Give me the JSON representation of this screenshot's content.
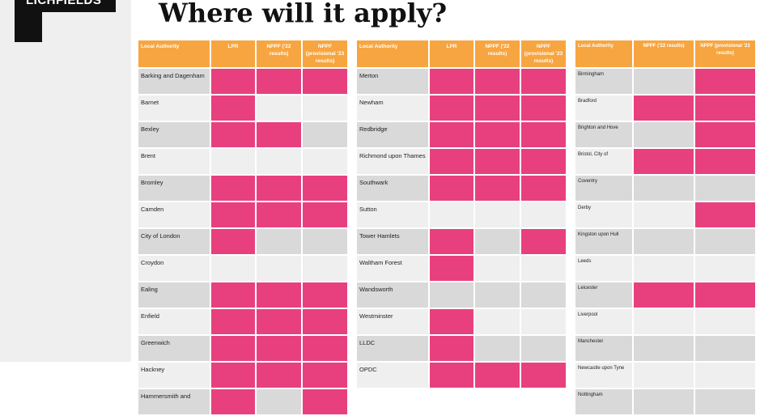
{
  "logo": {
    "text": "LICHFIELDS"
  },
  "title": "Where will it apply?",
  "colors": {
    "header": "#f7a540",
    "highlight": "#e8407f",
    "row_dark": "#d9d9d9",
    "row_light": "#efefef"
  },
  "table1": {
    "headers": [
      "Local Authority",
      "LPR",
      "NPPF ('22 results)",
      "NPPF (provisional '23 results)"
    ],
    "rows": [
      {
        "name": "Barking and Dagenham",
        "cells": [
          true,
          true,
          true
        ]
      },
      {
        "name": "Barnet",
        "cells": [
          true,
          false,
          false
        ]
      },
      {
        "name": "Bexley",
        "cells": [
          true,
          true,
          false
        ]
      },
      {
        "name": "Brent",
        "cells": [
          false,
          false,
          false
        ]
      },
      {
        "name": "Bromley",
        "cells": [
          true,
          true,
          true
        ]
      },
      {
        "name": "Camden",
        "cells": [
          true,
          true,
          true
        ]
      },
      {
        "name": "City of London",
        "cells": [
          true,
          false,
          false
        ]
      },
      {
        "name": "Croydon",
        "cells": [
          false,
          false,
          false
        ]
      },
      {
        "name": "Ealing",
        "cells": [
          true,
          true,
          true
        ]
      },
      {
        "name": "Enfield",
        "cells": [
          true,
          true,
          true
        ]
      },
      {
        "name": "Greenwich",
        "cells": [
          true,
          true,
          true
        ]
      },
      {
        "name": "Hackney",
        "cells": [
          true,
          true,
          true
        ]
      },
      {
        "name": "Hammersmith and",
        "cells": [
          true,
          false,
          true
        ]
      }
    ]
  },
  "table2": {
    "headers": [
      "Local Authority",
      "LPR",
      "NPPF ('22 results)",
      "NPPF (provisional '23 results)"
    ],
    "rows": [
      {
        "name": "Merton",
        "cells": [
          true,
          true,
          true
        ]
      },
      {
        "name": "Newham",
        "cells": [
          true,
          true,
          true
        ]
      },
      {
        "name": "Redbridge",
        "cells": [
          true,
          true,
          true
        ]
      },
      {
        "name": "Richmond upon Thames",
        "cells": [
          true,
          true,
          true
        ]
      },
      {
        "name": "Southwark",
        "cells": [
          true,
          true,
          true
        ]
      },
      {
        "name": "Sutton",
        "cells": [
          false,
          false,
          false
        ]
      },
      {
        "name": "Tower Hamlets",
        "cells": [
          true,
          false,
          true
        ]
      },
      {
        "name": "Waltham Forest",
        "cells": [
          true,
          false,
          false
        ]
      },
      {
        "name": "Wandsworth",
        "cells": [
          false,
          false,
          false
        ]
      },
      {
        "name": "Westminster",
        "cells": [
          true,
          false,
          false
        ]
      },
      {
        "name": "LLDC",
        "cells": [
          true,
          false,
          false
        ]
      },
      {
        "name": "OPDC",
        "cells": [
          true,
          true,
          true
        ]
      }
    ]
  },
  "table3": {
    "headers": [
      "Local Authority",
      "NPPF ('22 results)",
      "NPPF (provisional '23 results)"
    ],
    "rows": [
      {
        "name": "Birmingham",
        "cells": [
          false,
          true
        ]
      },
      {
        "name": "Bradford",
        "cells": [
          true,
          true
        ]
      },
      {
        "name": "Brighton and Hove",
        "cells": [
          false,
          true
        ]
      },
      {
        "name": "Bristol, City of",
        "cells": [
          true,
          true
        ]
      },
      {
        "name": "Coventry",
        "cells": [
          false,
          false
        ]
      },
      {
        "name": "Derby",
        "cells": [
          false,
          true
        ]
      },
      {
        "name": "Kingston upon Hull",
        "cells": [
          false,
          false
        ]
      },
      {
        "name": "Leeds",
        "cells": [
          false,
          false
        ]
      },
      {
        "name": "Leicester",
        "cells": [
          true,
          true
        ]
      },
      {
        "name": "Liverpool",
        "cells": [
          false,
          false
        ]
      },
      {
        "name": "Manchester",
        "cells": [
          false,
          false
        ]
      },
      {
        "name": "Newcastle upon Tyne",
        "cells": [
          false,
          false
        ]
      },
      {
        "name": "Nottingham",
        "cells": [
          false,
          false
        ]
      }
    ]
  }
}
